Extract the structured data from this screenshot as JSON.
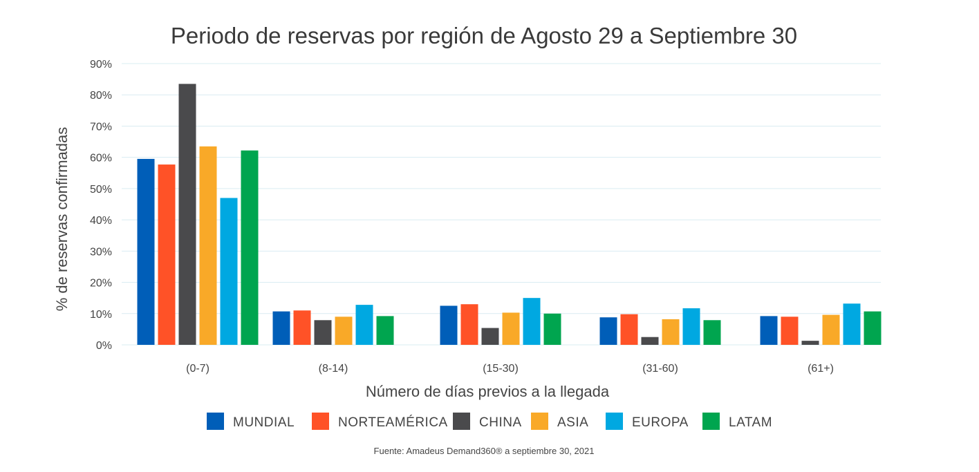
{
  "chart_data": {
    "type": "bar",
    "title": "Periodo de reservas por región de Agosto 29 a Septiembre 30",
    "xlabel": "Número de días previos a la llegada",
    "ylabel": "% de reservas confirmadas",
    "ylim": [
      0,
      90
    ],
    "yticks": [
      "0%",
      "10%",
      "20%",
      "30%",
      "40%",
      "50%",
      "60%",
      "70%",
      "80%",
      "90%"
    ],
    "grid": true,
    "legend_position": "bottom",
    "categories": [
      "(0-7)",
      "(8-14)",
      "(15-30)",
      "(31-60)",
      "(61+)"
    ],
    "series": [
      {
        "name": "MUNDIAL",
        "color": "#005eb8",
        "values": [
          59.5,
          10.7,
          12.5,
          8.8,
          9.2
        ]
      },
      {
        "name": "NORTEAMÉRICA",
        "color": "#ff5227",
        "values": [
          57.7,
          11.0,
          13.0,
          9.8,
          9.0
        ]
      },
      {
        "name": "CHINA",
        "color": "#4a4a4c",
        "values": [
          83.5,
          7.9,
          5.4,
          2.5,
          1.3
        ]
      },
      {
        "name": "ASIA",
        "color": "#f9a928",
        "values": [
          63.5,
          9.0,
          10.3,
          8.2,
          9.6
        ]
      },
      {
        "name": "EUROPA",
        "color": "#00a8e1",
        "values": [
          47.0,
          12.8,
          15.0,
          11.7,
          13.2
        ]
      },
      {
        "name": "LATAM",
        "color": "#00a54f",
        "values": [
          62.2,
          9.2,
          10.0,
          7.9,
          10.7
        ]
      }
    ],
    "source": "Fuente: Amadeus Demand360® a septiembre 30, 2021"
  }
}
